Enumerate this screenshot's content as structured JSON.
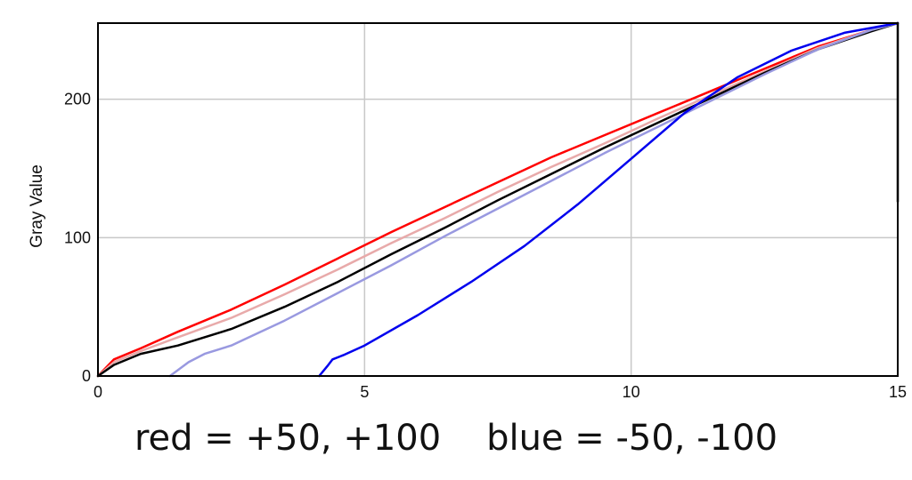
{
  "caption": "red = +50, +100    blue = -50, -100",
  "chart_data": {
    "type": "line",
    "title": "",
    "xlabel": "",
    "ylabel": "Gray Value",
    "xlim": [
      0,
      15
    ],
    "ylim": [
      0,
      255
    ],
    "grid": true,
    "legend": "none",
    "x_ticks": [
      0,
      5,
      10,
      15
    ],
    "y_ticks": [
      0,
      100,
      200
    ],
    "series": [
      {
        "color": "#ff0000",
        "x": [
          0,
          0.3,
          0.8,
          1.5,
          2.5,
          3.5,
          4.5,
          5.5,
          6.5,
          7.5,
          8.5,
          9.5,
          10.5,
          11.5,
          12.5,
          13.5,
          14.5,
          15
        ],
        "y": [
          0,
          12,
          20,
          32,
          48,
          66,
          85,
          104,
          122,
          140,
          158,
          174,
          190,
          206,
          222,
          238,
          250,
          255
        ]
      },
      {
        "color": "#e8aaaa",
        "x": [
          0,
          0.3,
          0.8,
          1.5,
          2.5,
          3.5,
          4.5,
          5.5,
          6.5,
          7.5,
          8.5,
          9.5,
          10.5,
          11.5,
          12.5,
          13.5,
          14.5,
          15
        ],
        "y": [
          0,
          10,
          18,
          28,
          42,
          59,
          77,
          96,
          114,
          133,
          151,
          168,
          186,
          203,
          220,
          237,
          250,
          255
        ]
      },
      {
        "color": "#000000",
        "x": [
          0,
          0.3,
          0.8,
          1.5,
          2.5,
          3.5,
          4.5,
          5.5,
          6.5,
          7.5,
          8.5,
          9.5,
          10.5,
          11.5,
          12.5,
          13.5,
          14.5,
          15
        ],
        "y": [
          0,
          8,
          16,
          22,
          34,
          50,
          68,
          88,
          107,
          127,
          146,
          165,
          183,
          201,
          219,
          236,
          249,
          255
        ]
      },
      {
        "color": "#9999e0",
        "x": [
          1.35,
          1.7,
          2.0,
          2.5,
          3.5,
          4.5,
          5.5,
          6.5,
          7.5,
          8.5,
          9.5,
          10.5,
          11.5,
          12.5,
          13.5,
          14.5,
          15
        ],
        "y": [
          0,
          10,
          16,
          22,
          40,
          60,
          80,
          101,
          121,
          141,
          161,
          180,
          199,
          218,
          236,
          250,
          255
        ]
      },
      {
        "color": "#0000ee",
        "x": [
          4.15,
          4.3,
          4.4,
          4.6,
          5.0,
          6.0,
          7.0,
          8.0,
          9.0,
          10.0,
          11.0,
          12.0,
          13.0,
          14.0,
          15.0
        ],
        "y": [
          0,
          7,
          12,
          15,
          22,
          44,
          68,
          94,
          124,
          157,
          190,
          216,
          235,
          248,
          255
        ]
      },
      {
        "color": "#000000",
        "x": [
          15,
          15
        ],
        "y": [
          126,
          255
        ]
      }
    ]
  }
}
